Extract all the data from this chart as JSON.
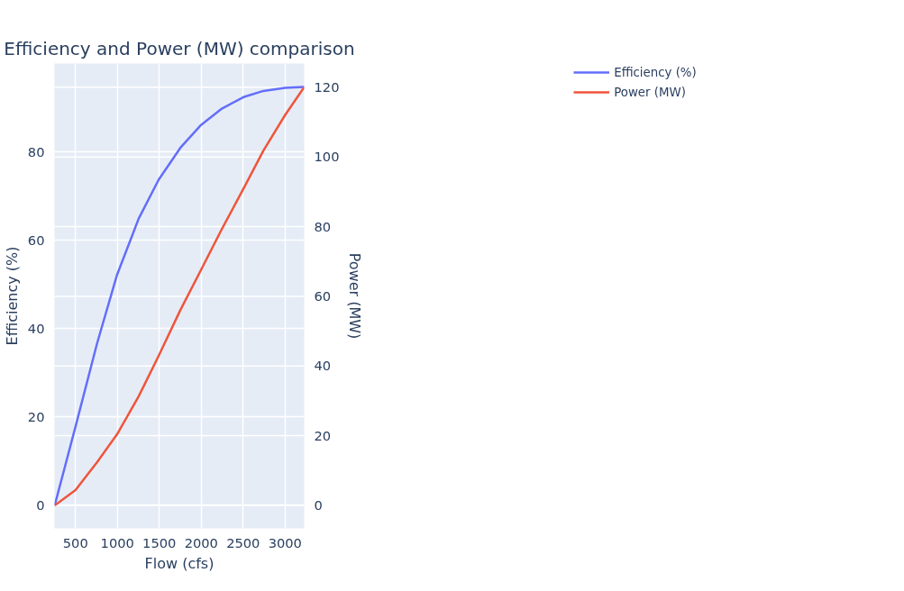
{
  "chart_data": {
    "type": "line",
    "title": "Efficiency and Power (MW) comparison",
    "xlabel": "Flow (cfs)",
    "ylabel": "Efficiency (%)",
    "y2label": "Power (MW)",
    "xlim": [
      250,
      3228
    ],
    "xticks": [
      500,
      1000,
      1500,
      2000,
      2500,
      3000
    ],
    "ylim": [
      -5.2,
      100
    ],
    "yticks": [
      0,
      20,
      40,
      60,
      80
    ],
    "y2lim": [
      -6.6,
      126.8
    ],
    "y2ticks": [
      0,
      20,
      40,
      60,
      80,
      100,
      120
    ],
    "grid": true,
    "legend": "top right",
    "x": [
      252,
      500,
      758,
      996,
      1254,
      1492,
      1750,
      1998,
      2246,
      2504,
      2742,
      3000,
      3228
    ],
    "series": [
      {
        "name": "Efficiency (%)",
        "color": "#636efa",
        "values": [
          0,
          17.8,
          36.7,
          52.2,
          64.9,
          73.7,
          80.9,
          86.1,
          89.8,
          92.4,
          93.8,
          94.5,
          94.7
        ]
      },
      {
        "name": "Power (MW)",
        "color": "#ef553b",
        "axis": "y2",
        "values": [
          0,
          4.4,
          12.4,
          20.4,
          31.3,
          42.9,
          56,
          67.6,
          79.3,
          90.9,
          101.8,
          112,
          120
        ]
      }
    ]
  }
}
